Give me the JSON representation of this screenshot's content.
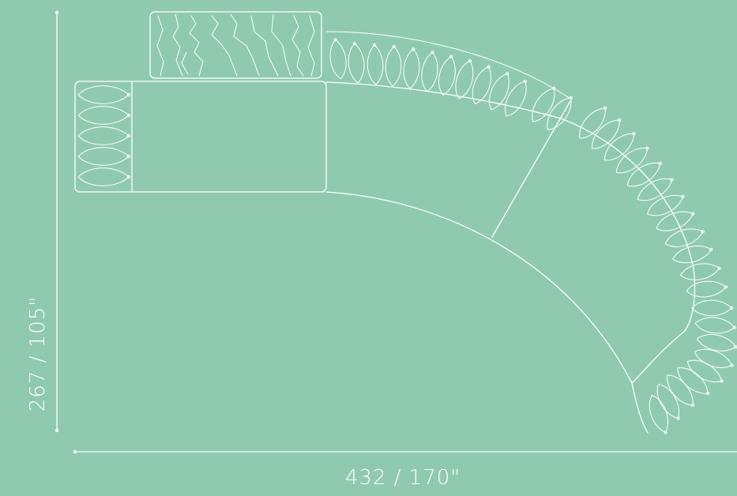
{
  "colors": {
    "background": "#8fcab0",
    "line": "#ffffff",
    "label": "#ffffff"
  },
  "dimensions": {
    "width_label": "432  / 170\"",
    "depth_label": "267 / 105\""
  },
  "components": [
    {
      "name": "ottoman"
    },
    {
      "name": "chaise-seat"
    },
    {
      "name": "curved-seat-1"
    },
    {
      "name": "curved-seat-2"
    },
    {
      "name": "curved-end"
    }
  ]
}
